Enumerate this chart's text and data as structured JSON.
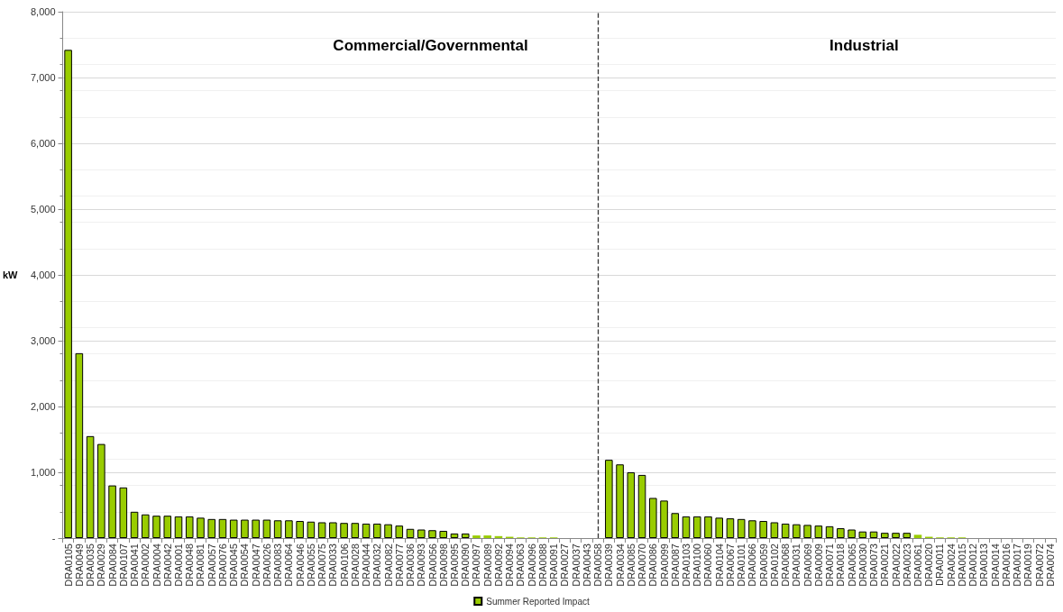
{
  "chart_data": {
    "type": "bar",
    "ylabel": "kW",
    "categories": [
      "DRA0105",
      "DRA0049",
      "DRA0035",
      "DRA0029",
      "DRA0084",
      "DRA0107",
      "DRA0041",
      "DRA0002",
      "DRA0004",
      "DRA0042",
      "DRA0001",
      "DRA0048",
      "DRA0081",
      "DRA0057",
      "DRA0076",
      "DRA0045",
      "DRA0054",
      "DRA0047",
      "DRA0026",
      "DRA0083",
      "DRA0064",
      "DRA0046",
      "DRA0055",
      "DRA0075",
      "DRA0033",
      "DRA0106",
      "DRA0028",
      "DRA0044",
      "DRA0032",
      "DRA0082",
      "DRA0077",
      "DRA0036",
      "DRA0093",
      "DRA0056",
      "DRA0098",
      "DRA0095",
      "DRA0090",
      "DRA0097",
      "DRA0089",
      "DRA0092",
      "DRA0094",
      "DRA0063",
      "DRA0096",
      "DRA0088",
      "DRA0091",
      "DRA0027",
      "DRA0037",
      "DRA0043",
      "DRA0058",
      "DRA0039",
      "DRA0034",
      "DRA0085",
      "DRA0070",
      "DRA0086",
      "DRA0099",
      "DRA0087",
      "DRA0103",
      "DRA0100",
      "DRA0060",
      "DRA0104",
      "DRA0067",
      "DRA0101",
      "DRA0066",
      "DRA0059",
      "DRA0102",
      "DRA0068",
      "DRA0031",
      "DRA0069",
      "DRA0009",
      "DRA0071",
      "DRA0018",
      "DRA0065",
      "DRA0030",
      "DRA0073",
      "DRA0021",
      "DRA0022",
      "DRA0023",
      "DRA0061",
      "DRA0020",
      "DRA0011",
      "DRA0024",
      "DRA0015",
      "DRA0012",
      "DRA0013",
      "DRA0014",
      "DRA0016",
      "DRA0017",
      "DRA0019",
      "DRA0072",
      "DRA0074"
    ],
    "series": [
      {
        "name": "Summer Reported Impact",
        "color": "#99cc00",
        "values": [
          7420,
          2810,
          1550,
          1430,
          800,
          770,
          400,
          360,
          340,
          340,
          330,
          330,
          310,
          290,
          290,
          280,
          280,
          280,
          280,
          270,
          270,
          260,
          250,
          240,
          240,
          230,
          230,
          220,
          220,
          210,
          190,
          140,
          130,
          120,
          110,
          70,
          70,
          40,
          40,
          30,
          20,
          10,
          10,
          10,
          10,
          0,
          0,
          0,
          0,
          1190,
          1120,
          1000,
          960,
          610,
          570,
          380,
          330,
          330,
          330,
          310,
          300,
          290,
          270,
          260,
          240,
          220,
          210,
          200,
          190,
          180,
          150,
          130,
          100,
          100,
          80,
          80,
          80,
          50,
          20,
          10,
          10,
          10,
          0,
          0,
          0,
          0,
          0,
          0,
          0,
          0
        ]
      }
    ],
    "ylim": [
      0,
      8000
    ],
    "yticks": [
      {
        "value": 0,
        "label": "-"
      },
      {
        "value": 1000,
        "label": "1,000"
      },
      {
        "value": 2000,
        "label": "2,000"
      },
      {
        "value": 3000,
        "label": "3,000"
      },
      {
        "value": 4000,
        "label": "4,000"
      },
      {
        "value": 5000,
        "label": "5,000"
      },
      {
        "value": 6000,
        "label": "6,000"
      },
      {
        "value": 7000,
        "label": "7,000"
      },
      {
        "value": 8000,
        "label": "8,000"
      }
    ],
    "grid": "y",
    "legend": "bottom",
    "ref_lines": [
      {
        "axis": "x",
        "value": "DRA0058",
        "label": null,
        "color": "#333333",
        "line_style": "dashed"
      }
    ],
    "annotations": [
      "Commercial/Governmental",
      "Industrial"
    ]
  }
}
